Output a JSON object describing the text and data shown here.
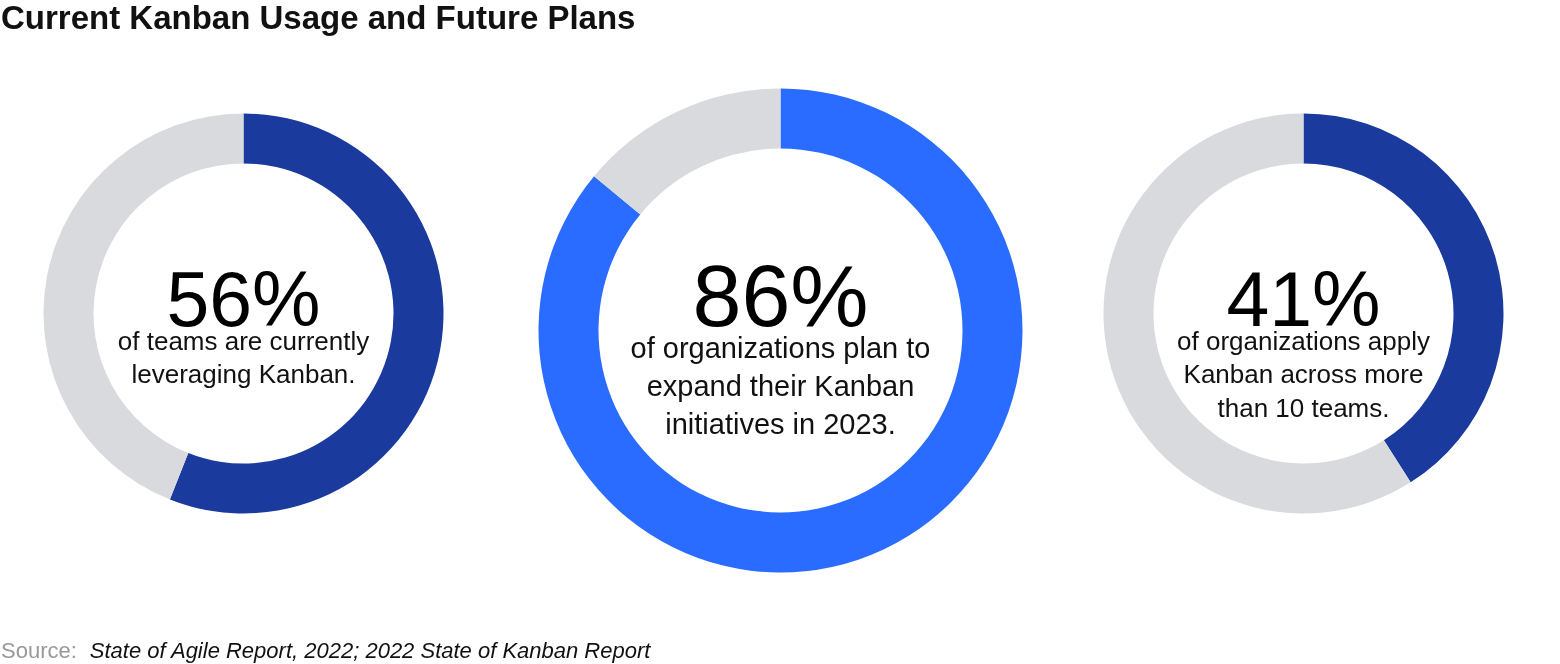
{
  "chart_data": [
    {
      "type": "donut",
      "title": "Current Kanban Usage and Future Plans",
      "categories": [
        null,
        null
      ],
      "values": [
        56,
        44
      ],
      "colors": [
        "#1b3a9e",
        "#d9dadd"
      ],
      "value_labels": [
        "56%",
        null
      ],
      "annotations": [
        "of teams are currently leveraging Kanban.",
        "Source:",
        "State of Agile Report, 2022; 2022 State of Kanban Report"
      ]
    },
    {
      "type": "donut",
      "categories": [
        null,
        null
      ],
      "values": [
        86,
        14
      ],
      "colors": [
        "#2a6cff",
        "#d9dadd"
      ],
      "value_labels": [
        "86%",
        null
      ],
      "annotations": [
        "of organizations plan to expand their Kanban initiatives in 2023."
      ]
    },
    {
      "type": "donut",
      "categories": [
        null,
        null
      ],
      "values": [
        41,
        59
      ],
      "colors": [
        "#1b3a9e",
        "#d9dadd"
      ],
      "value_labels": [
        "41%",
        null
      ],
      "annotations": [
        "of organizations apply Kanban across more than 10 teams."
      ]
    }
  ]
}
